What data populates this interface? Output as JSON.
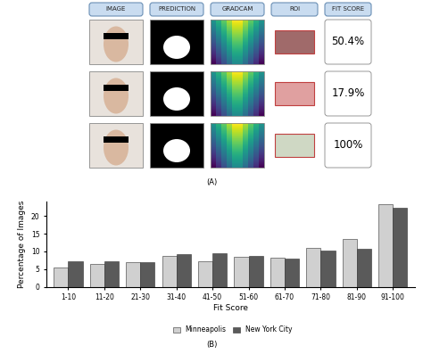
{
  "panel_a": {
    "label": "(A)",
    "header": [
      "IMAGE",
      "PREDICTION",
      "GRADCAM",
      "ROI",
      "FIT SCORE"
    ],
    "fit_scores": [
      "50.4%",
      "17.9%",
      "100%"
    ]
  },
  "chart_data": {
    "type": "bar",
    "panel_label": "(B)",
    "x_label": "Fit Score",
    "y_label": "Percentage of Images",
    "categories": [
      "1-10",
      "11-20",
      "21-30",
      "31-40",
      "41-50",
      "51-60",
      "61-70",
      "71-80",
      "81-90",
      "91-100"
    ],
    "series": [
      {
        "name": "Minneapolis",
        "color": "#d0d0d0",
        "values": [
          5.5,
          6.5,
          7.0,
          8.8,
          7.2,
          8.4,
          8.3,
          11.0,
          13.6,
          23.2
        ]
      },
      {
        "name": "New York City",
        "color": "#5a5a5a",
        "values": [
          7.1,
          7.1,
          6.9,
          9.3,
          9.4,
          8.8,
          7.9,
          10.2,
          10.6,
          22.3
        ]
      }
    ],
    "ylim": [
      0,
      24
    ],
    "yticks": [
      0,
      5,
      10,
      15,
      20
    ],
    "legend": "lower center"
  }
}
